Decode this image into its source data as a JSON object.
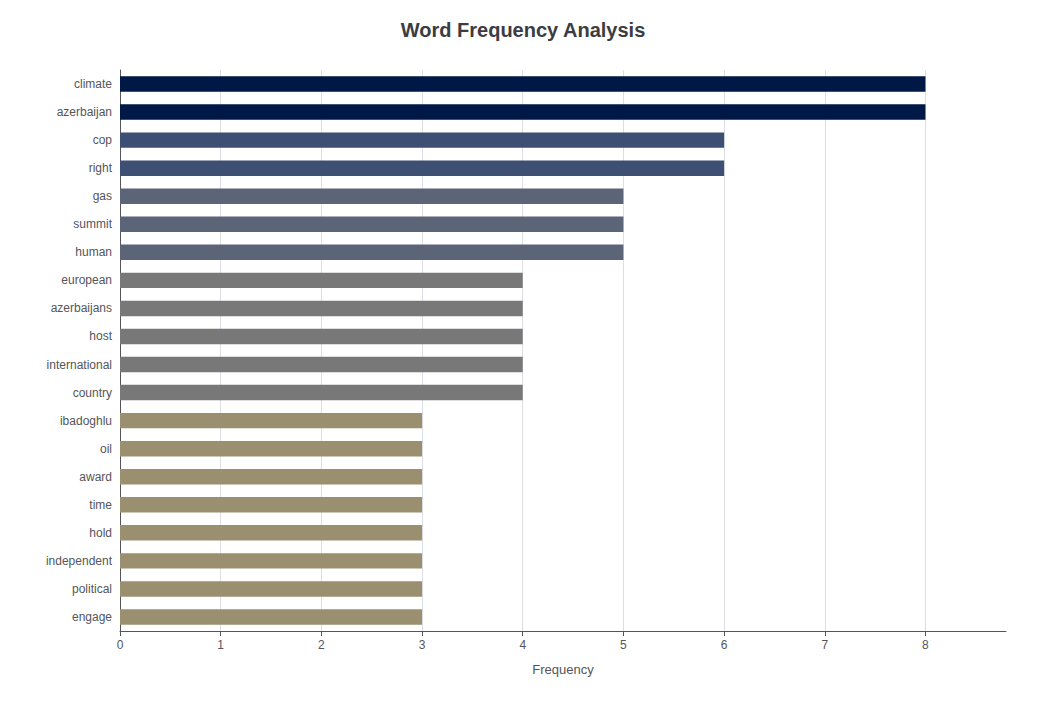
{
  "chart_data": {
    "type": "bar",
    "orientation": "horizontal",
    "title": "Word Frequency Analysis",
    "xlabel": "Frequency",
    "categories": [
      "climate",
      "azerbaijan",
      "cop",
      "right",
      "gas",
      "summit",
      "human",
      "european",
      "azerbaijans",
      "host",
      "international",
      "country",
      "ibadoghlu",
      "oil",
      "award",
      "time",
      "hold",
      "independent",
      "political",
      "engage"
    ],
    "values": [
      8,
      8,
      6,
      6,
      5,
      5,
      5,
      4,
      4,
      4,
      4,
      4,
      3,
      3,
      3,
      3,
      3,
      3,
      3,
      3
    ],
    "colors": [
      "#001845",
      "#001845",
      "#3d4f73",
      "#3d4f73",
      "#5c6478",
      "#5c6478",
      "#5c6478",
      "#787878",
      "#787878",
      "#787878",
      "#787878",
      "#787878",
      "#9a9070",
      "#9a9070",
      "#9a9070",
      "#9a9070",
      "#9a9070",
      "#9a9070",
      "#9a9070",
      "#9a9070"
    ],
    "xlim": [
      0,
      8.8
    ],
    "xticks": [
      0,
      1,
      2,
      3,
      4,
      5,
      6,
      7,
      8
    ],
    "grid": true
  }
}
